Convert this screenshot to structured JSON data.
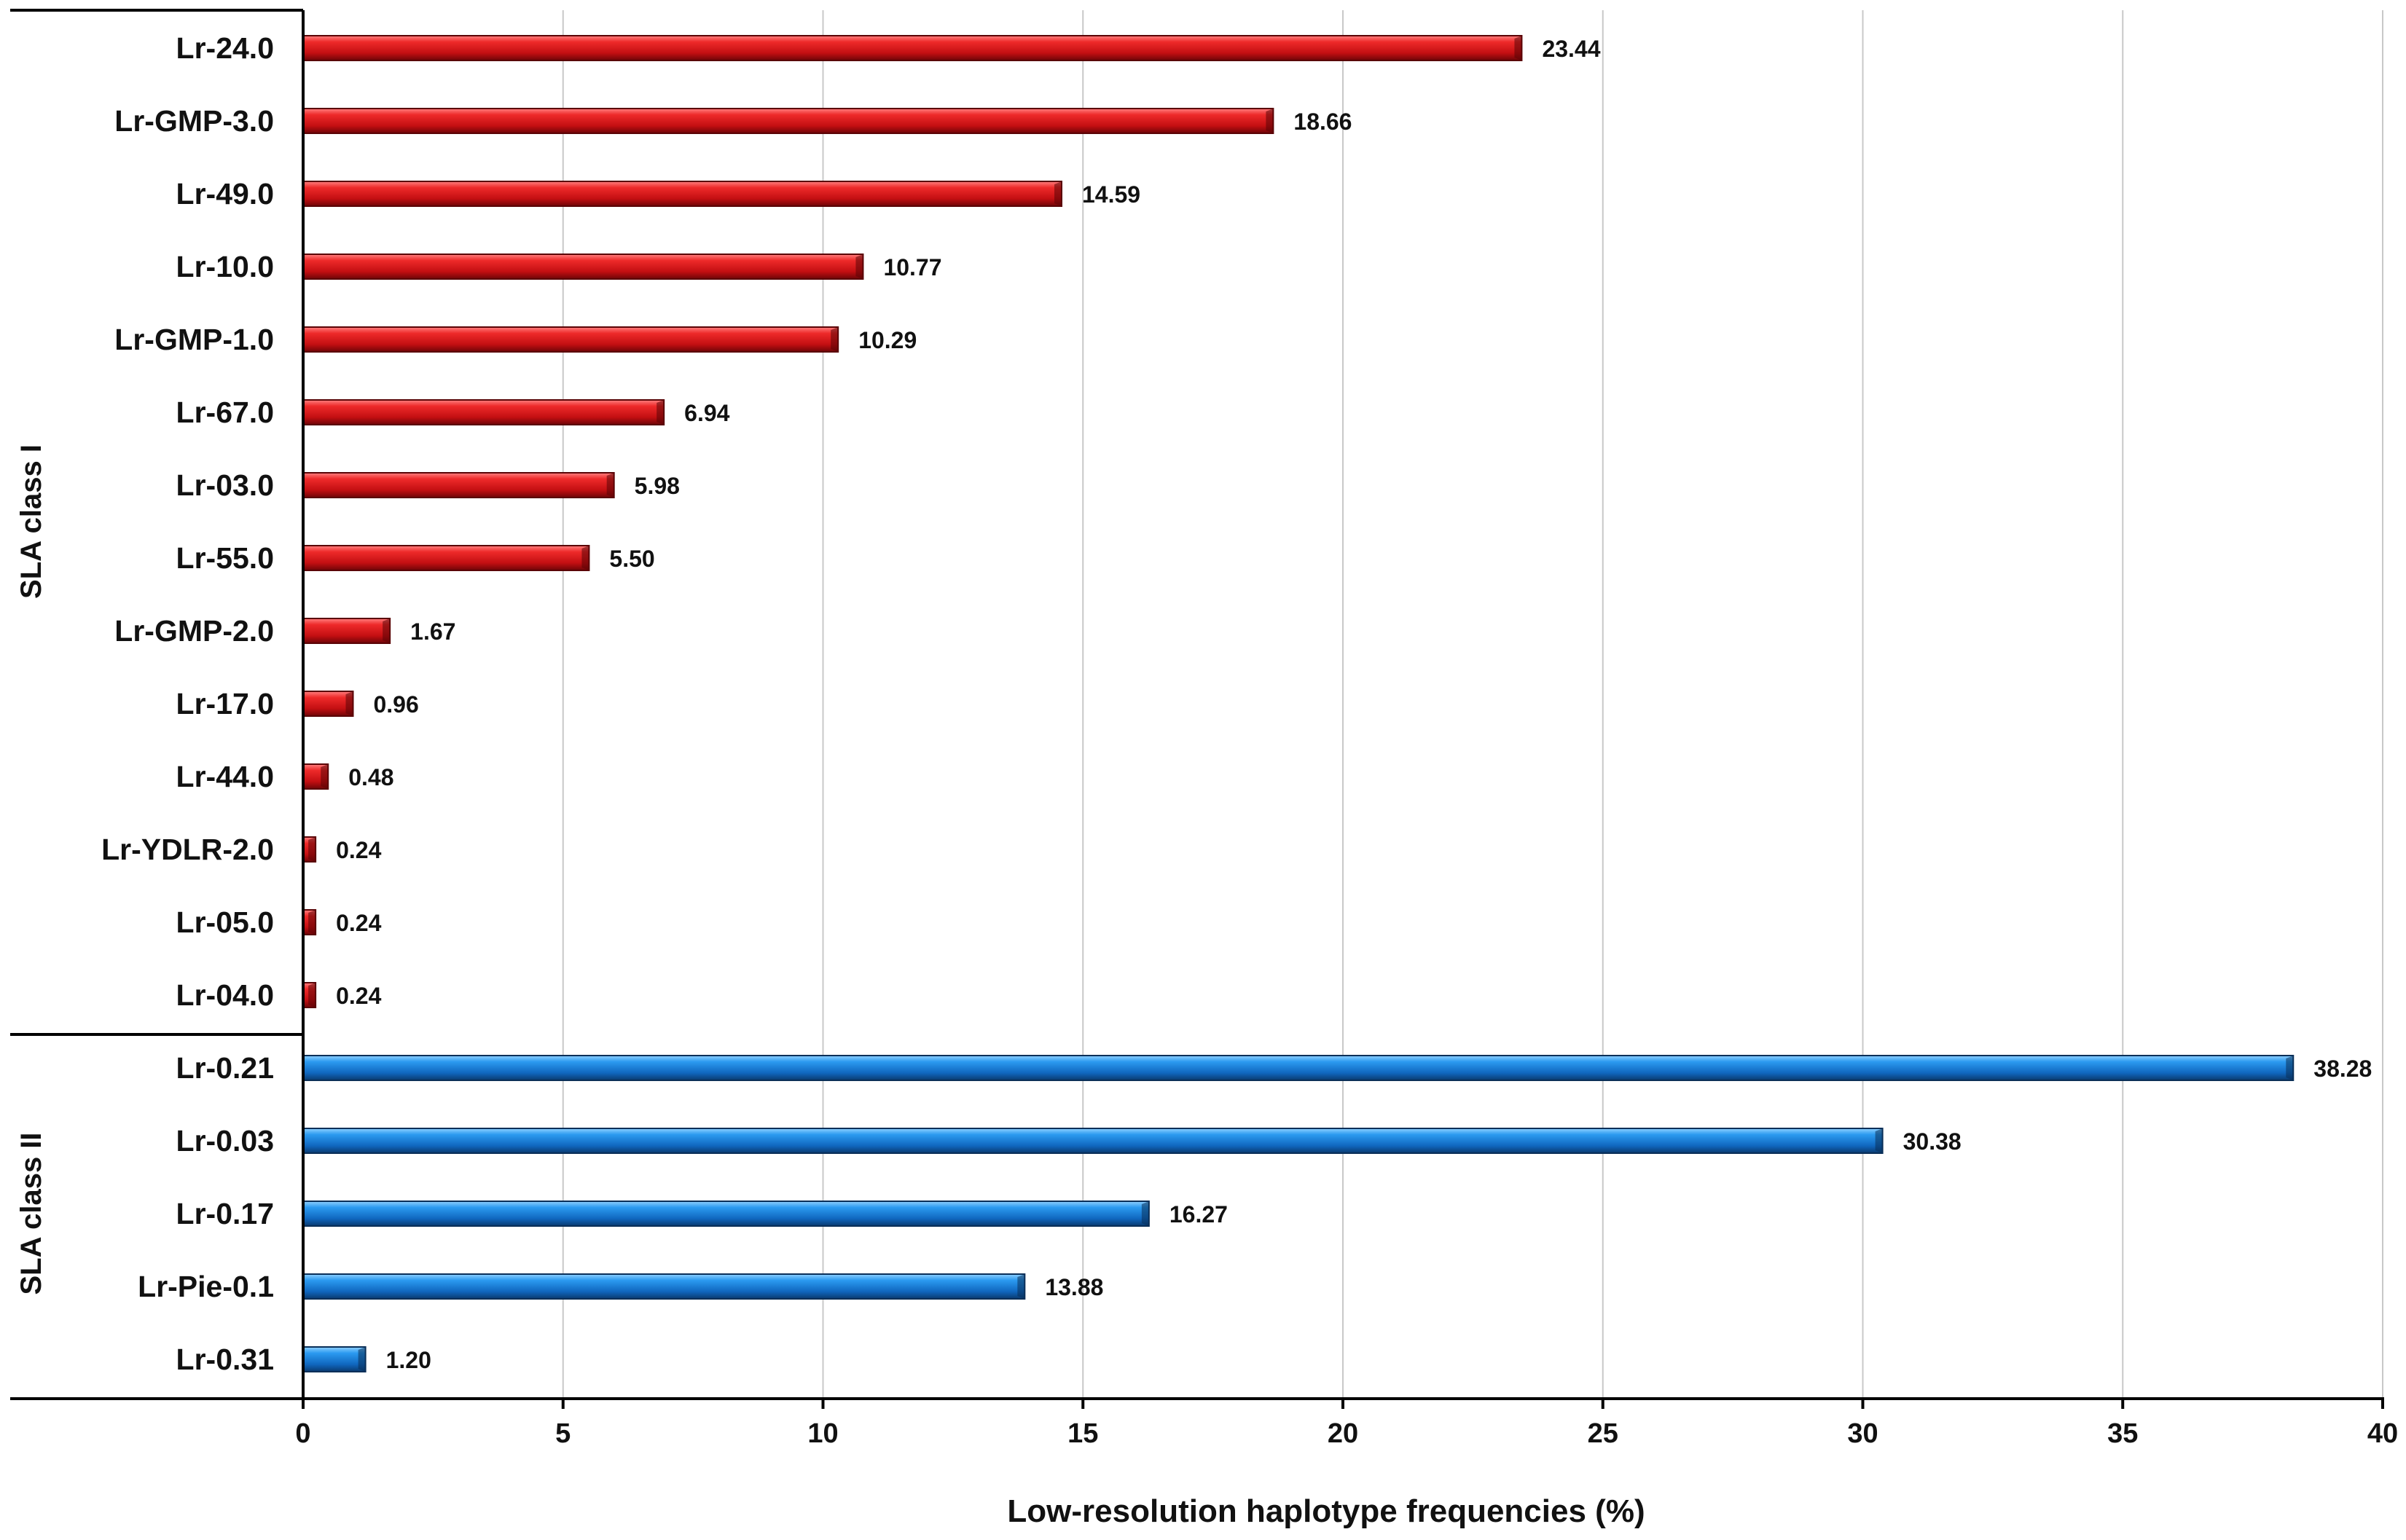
{
  "chart_data": {
    "type": "bar",
    "orientation": "horizontal",
    "title": "",
    "xlabel": "Low-resolution haplotype frequencies (%)",
    "ylabel": "",
    "xlim": [
      0,
      40
    ],
    "x_ticks": [
      "0",
      "5",
      "10",
      "15",
      "20",
      "25",
      "30",
      "35",
      "40"
    ],
    "grid": "vertical",
    "groups": [
      {
        "name": "SLA class I",
        "color": "#e8161b",
        "categories": [
          "Lr-24.0",
          "Lr-GMP-3.0",
          "Lr-49.0",
          "Lr-10.0",
          "Lr-GMP-1.0",
          "Lr-67.0",
          "Lr-03.0",
          "Lr-55.0",
          "Lr-GMP-2.0",
          "Lr-17.0",
          "Lr-44.0",
          "Lr-YDLR-2.0",
          "Lr-05.0",
          "Lr-04.0"
        ],
        "values": [
          23.44,
          18.66,
          14.59,
          10.77,
          10.29,
          6.94,
          5.98,
          5.5,
          1.67,
          0.96,
          0.48,
          0.24,
          0.24,
          0.24
        ],
        "value_labels": [
          "23.44",
          "18.66",
          "14.59",
          "10.77",
          "10.29",
          "6.94",
          "5.98",
          "5.50",
          "1.67",
          "0.96",
          "0.48",
          "0.24",
          "0.24",
          "0.24"
        ]
      },
      {
        "name": "SLA class II",
        "color": "#1a8ce0",
        "categories": [
          "Lr-0.21",
          "Lr-0.03",
          "Lr-0.17",
          "Lr-Pie-0.1",
          "Lr-0.31"
        ],
        "values": [
          38.28,
          30.38,
          16.27,
          13.88,
          1.2
        ],
        "value_labels": [
          "38.28",
          "30.38",
          "16.27",
          "13.88",
          "1.20"
        ]
      }
    ]
  }
}
